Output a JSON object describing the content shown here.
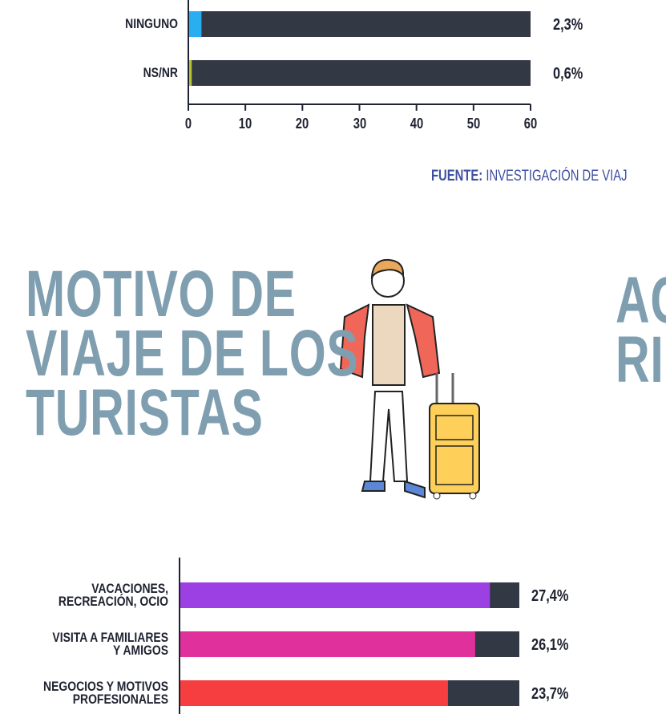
{
  "chart_data": [
    {
      "type": "bar",
      "orientation": "horizontal",
      "categories": [
        "NINGUNO",
        "NS/NR"
      ],
      "series": [
        {
          "colors": [
            "#2aaef2",
            "#b6c22c"
          ],
          "values": [
            2.3,
            0.6
          ]
        }
      ],
      "value_labels": [
        "2,3%",
        "0,6%"
      ],
      "track_color": "#333845",
      "xlim": [
        0,
        60
      ],
      "xticks": [
        0,
        10,
        20,
        30,
        40,
        50,
        60
      ]
    },
    {
      "type": "bar",
      "orientation": "horizontal",
      "categories": [
        "VACACIONES,\nRECREACIÓN, OCIO",
        "VISITA A FAMILIARES\nY AMIGOS",
        "NEGOCIOS Y MOTIVOS\nPROFESIONALES"
      ],
      "series": [
        {
          "colors": [
            "#9c40e4",
            "#e0309b",
            "#f63d40"
          ],
          "values": [
            27.4,
            26.1,
            23.7
          ]
        }
      ],
      "value_labels": [
        "27,4%",
        "26,1%",
        "23,7%"
      ],
      "track_color": "#333845",
      "xlim": [
        0,
        30
      ]
    }
  ],
  "source": {
    "label": "FUENTE:",
    "text": "INVESTIGACIÓN DE VIAJ"
  },
  "heading": "MOTIVO DE\nVIAJE DE LOS\nTURISTAS",
  "side_heading": "AC\nRI"
}
